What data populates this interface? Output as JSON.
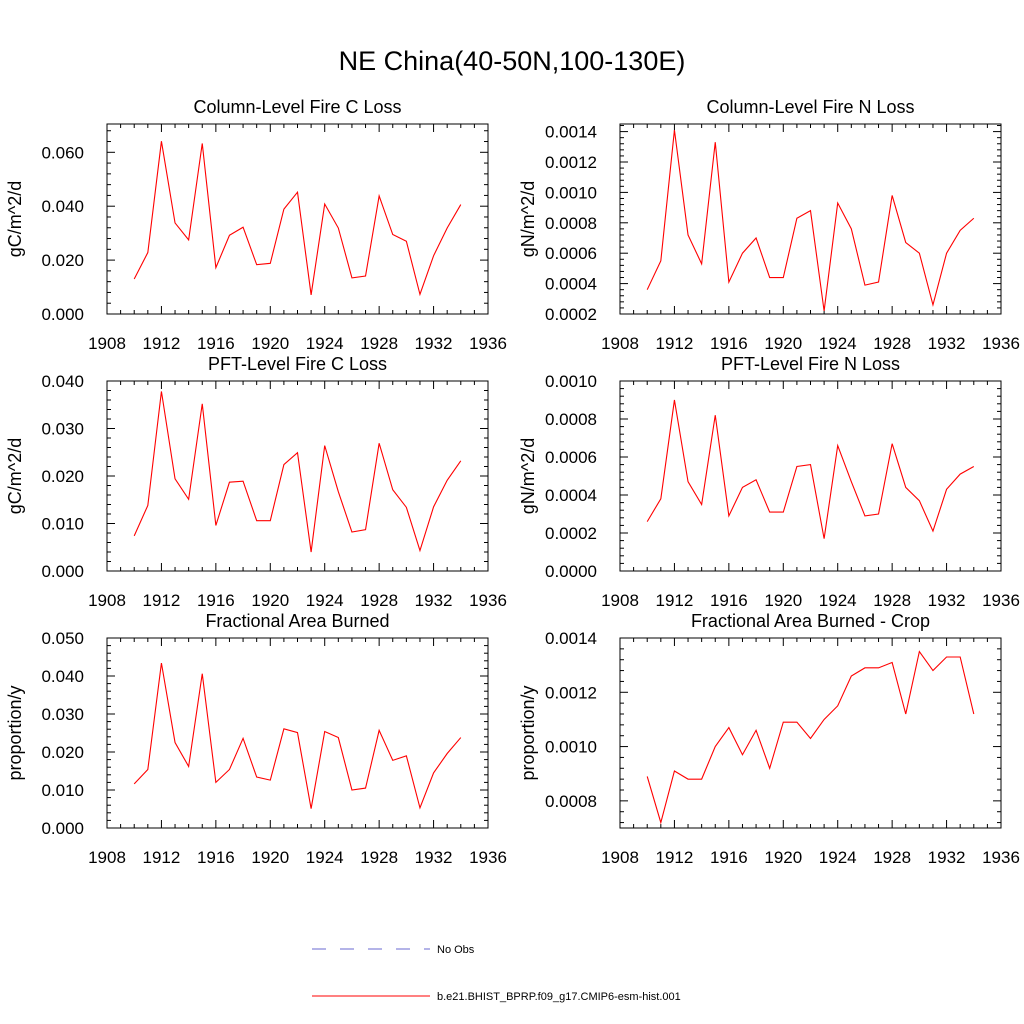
{
  "page_title": "NE China(40-50N,100-130E)",
  "legend": {
    "entries": [
      {
        "label": "No Obs",
        "color": "#6a6ad0",
        "style": "dashed"
      },
      {
        "label": "b.e21.BHIST_BPRP.f09_g17.CMIP6-esm-hist.001",
        "color": "#ff0000",
        "style": "solid"
      }
    ]
  },
  "chart_data": [
    {
      "type": "line",
      "title": "Column-Level Fire C Loss",
      "ylabel": "gC/m^2/d",
      "xlim": [
        1908,
        1936
      ],
      "ylim": [
        0.0,
        0.0705
      ],
      "xticks": [
        1908,
        1912,
        1916,
        1920,
        1924,
        1928,
        1932,
        1936
      ],
      "yticks": [
        0.0,
        0.02,
        0.04,
        0.06
      ],
      "ytick_labels": [
        "0.000",
        "0.020",
        "0.040",
        "0.060"
      ],
      "series": [
        {
          "color": "#ff0000",
          "x": [
            1910,
            1911,
            1912,
            1913,
            1914,
            1915,
            1916,
            1917,
            1918,
            1919,
            1920,
            1921,
            1922,
            1923,
            1924,
            1925,
            1926,
            1927,
            1928,
            1929,
            1930,
            1931,
            1932,
            1933,
            1934
          ],
          "y": [
            0.013,
            0.0228,
            0.0641,
            0.0338,
            0.0275,
            0.0633,
            0.0172,
            0.0292,
            0.0322,
            0.0183,
            0.0188,
            0.0389,
            0.0452,
            0.0071,
            0.0408,
            0.0319,
            0.0134,
            0.0141,
            0.0438,
            0.0295,
            0.027,
            0.0073,
            0.0216,
            0.0319,
            0.0406
          ]
        }
      ]
    },
    {
      "type": "line",
      "title": "Column-Level Fire N Loss",
      "ylabel": "gN/m^2/d",
      "xlim": [
        1908,
        1936
      ],
      "ylim": [
        0.0002,
        0.00145
      ],
      "xticks": [
        1908,
        1912,
        1916,
        1920,
        1924,
        1928,
        1932,
        1936
      ],
      "yticks": [
        0.0002,
        0.0004,
        0.0006,
        0.0008,
        0.001,
        0.0012,
        0.0014
      ],
      "ytick_labels": [
        "0.0002",
        "0.0004",
        "0.0006",
        "0.0008",
        "0.0010",
        "0.0012",
        "0.0014"
      ],
      "series": [
        {
          "color": "#ff0000",
          "x": [
            1910,
            1911,
            1912,
            1913,
            1914,
            1915,
            1916,
            1917,
            1918,
            1919,
            1920,
            1921,
            1922,
            1923,
            1924,
            1925,
            1926,
            1927,
            1928,
            1929,
            1930,
            1931,
            1932,
            1933,
            1934
          ],
          "y": [
            0.00036,
            0.00055,
            0.00141,
            0.00072,
            0.00053,
            0.00133,
            0.00041,
            0.0006,
            0.0007,
            0.00044,
            0.00044,
            0.00083,
            0.00088,
            0.00022,
            0.00093,
            0.00076,
            0.00039,
            0.00041,
            0.00098,
            0.00067,
            0.0006,
            0.00026,
            0.0006,
            0.00075,
            0.00083
          ]
        }
      ]
    },
    {
      "type": "line",
      "title": "PFT-Level Fire C Loss",
      "ylabel": "gC/m^2/d",
      "xlim": [
        1908,
        1936
      ],
      "ylim": [
        0.0,
        0.04
      ],
      "xticks": [
        1908,
        1912,
        1916,
        1920,
        1924,
        1928,
        1932,
        1936
      ],
      "yticks": [
        0.0,
        0.01,
        0.02,
        0.03,
        0.04
      ],
      "ytick_labels": [
        "0.000",
        "0.010",
        "0.020",
        "0.030",
        "0.040"
      ],
      "series": [
        {
          "color": "#ff0000",
          "x": [
            1910,
            1911,
            1912,
            1913,
            1914,
            1915,
            1916,
            1917,
            1918,
            1919,
            1920,
            1921,
            1922,
            1923,
            1924,
            1925,
            1926,
            1927,
            1928,
            1929,
            1930,
            1931,
            1932,
            1933,
            1934
          ],
          "y": [
            0.0074,
            0.0138,
            0.0378,
            0.0194,
            0.0151,
            0.0352,
            0.0096,
            0.0187,
            0.0189,
            0.0106,
            0.0106,
            0.0224,
            0.0249,
            0.004,
            0.0264,
            0.0167,
            0.0082,
            0.0087,
            0.0269,
            0.0171,
            0.0134,
            0.0043,
            0.0135,
            0.0191,
            0.0232
          ]
        }
      ]
    },
    {
      "type": "line",
      "title": "PFT-Level Fire N Loss",
      "ylabel": "gN/m^2/d",
      "xlim": [
        1908,
        1936
      ],
      "ylim": [
        0.0,
        0.001
      ],
      "xticks": [
        1908,
        1912,
        1916,
        1920,
        1924,
        1928,
        1932,
        1936
      ],
      "yticks": [
        0.0,
        0.0002,
        0.0004,
        0.0006,
        0.0008,
        0.001
      ],
      "ytick_labels": [
        "0.0000",
        "0.0002",
        "0.0004",
        "0.0006",
        "0.0008",
        "0.0010"
      ],
      "series": [
        {
          "color": "#ff0000",
          "x": [
            1910,
            1911,
            1912,
            1913,
            1914,
            1915,
            1916,
            1917,
            1918,
            1919,
            1920,
            1921,
            1922,
            1923,
            1924,
            1925,
            1926,
            1927,
            1928,
            1929,
            1930,
            1931,
            1932,
            1933,
            1934
          ],
          "y": [
            0.00026,
            0.00038,
            0.0009,
            0.00047,
            0.00035,
            0.00082,
            0.00029,
            0.00044,
            0.00048,
            0.00031,
            0.00031,
            0.00055,
            0.00056,
            0.00017,
            0.00066,
            0.00047,
            0.00029,
            0.0003,
            0.00067,
            0.00044,
            0.00037,
            0.00021,
            0.00043,
            0.00051,
            0.00055
          ]
        }
      ]
    },
    {
      "type": "line",
      "title": "Fractional Area Burned",
      "ylabel": "proportion/y",
      "xlim": [
        1908,
        1936
      ],
      "ylim": [
        0.0,
        0.05
      ],
      "xticks": [
        1908,
        1912,
        1916,
        1920,
        1924,
        1928,
        1932,
        1936
      ],
      "yticks": [
        0.0,
        0.01,
        0.02,
        0.03,
        0.04,
        0.05
      ],
      "ytick_labels": [
        "0.000",
        "0.010",
        "0.020",
        "0.030",
        "0.040",
        "0.050"
      ],
      "series": [
        {
          "color": "#ff0000",
          "x": [
            1910,
            1911,
            1912,
            1913,
            1914,
            1915,
            1916,
            1917,
            1918,
            1919,
            1920,
            1921,
            1922,
            1923,
            1924,
            1925,
            1926,
            1927,
            1928,
            1929,
            1930,
            1931,
            1932,
            1933,
            1934
          ],
          "y": [
            0.0116,
            0.0154,
            0.0434,
            0.0225,
            0.0162,
            0.0406,
            0.012,
            0.0154,
            0.0236,
            0.0134,
            0.0126,
            0.0261,
            0.0251,
            0.0051,
            0.0254,
            0.0238,
            0.01,
            0.0105,
            0.0257,
            0.0178,
            0.019,
            0.0053,
            0.0145,
            0.0196,
            0.0238
          ]
        }
      ]
    },
    {
      "type": "line",
      "title": "Fractional Area Burned - Crop",
      "ylabel": "proportion/y",
      "xlim": [
        1908,
        1936
      ],
      "ylim": [
        0.0007,
        0.0014
      ],
      "xticks": [
        1908,
        1912,
        1916,
        1920,
        1924,
        1928,
        1932,
        1936
      ],
      "yticks": [
        0.0008,
        0.001,
        0.0012,
        0.0014
      ],
      "ytick_labels": [
        "0.0008",
        "0.0010",
        "0.0012",
        "0.0014"
      ],
      "series": [
        {
          "color": "#ff0000",
          "x": [
            1910,
            1911,
            1912,
            1913,
            1914,
            1915,
            1916,
            1917,
            1918,
            1919,
            1920,
            1921,
            1922,
            1923,
            1924,
            1925,
            1926,
            1927,
            1928,
            1929,
            1930,
            1931,
            1932,
            1933,
            1934
          ],
          "y": [
            0.00089,
            0.00072,
            0.00091,
            0.00088,
            0.00088,
            0.001,
            0.00107,
            0.00097,
            0.00106,
            0.00092,
            0.00109,
            0.00109,
            0.00103,
            0.0011,
            0.00115,
            0.00126,
            0.00129,
            0.00129,
            0.00131,
            0.00112,
            0.00135,
            0.00128,
            0.00133,
            0.00133,
            0.00112
          ]
        }
      ]
    }
  ]
}
